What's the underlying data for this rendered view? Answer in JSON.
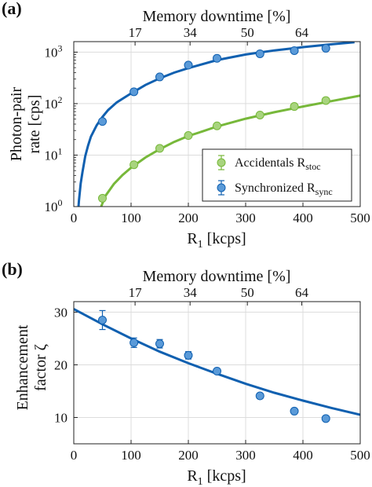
{
  "chart_data": [
    {
      "type": "scatter",
      "panel_label": "(a)",
      "xlabel": "R",
      "xlabel_sub": "1",
      "xlabel_unit": " [kcps]",
      "ylabel_line1": "Photon-pair",
      "ylabel_line2": "rate [cps]",
      "top_xlabel": "Memory downtime [%]",
      "yscale": "log",
      "xlim": [
        0,
        500
      ],
      "ylim": [
        1,
        1600
      ],
      "x_ticks": [
        0,
        100,
        200,
        300,
        400,
        500
      ],
      "x_tick_labels": [
        "0",
        "100",
        "200",
        "300",
        "400",
        "500"
      ],
      "y_ticks": [
        1,
        10,
        100,
        1000
      ],
      "y_tick_labels": [
        {
          "base": "10",
          "exp": "0"
        },
        {
          "base": "10",
          "exp": "1"
        },
        {
          "base": "10",
          "exp": "2"
        },
        {
          "base": "10",
          "exp": "3"
        }
      ],
      "top_ticks": [
        {
          "x": 107,
          "label": "17"
        },
        {
          "x": 203,
          "label": "34"
        },
        {
          "x": 303,
          "label": "50"
        },
        {
          "x": 398,
          "label": "64"
        }
      ],
      "grid": true,
      "legend_position": "bottom-right",
      "series": [
        {
          "name": "Accidentals R",
          "name_sub": "stoc",
          "color": "#77b83a",
          "marker_fill": "#a8d47e",
          "x": [
            50,
            105,
            150,
            200,
            250,
            325,
            385,
            440
          ],
          "y": [
            1.45,
            6.5,
            13.5,
            24,
            37,
            60,
            88,
            115
          ],
          "fit_x": [
            40,
            55,
            70,
            85,
            100,
            125,
            150,
            175,
            200,
            225,
            250,
            300,
            350,
            400,
            450,
            500
          ],
          "fit_y": [
            0.6,
            1.6,
            2.75,
            4.1,
            5.7,
            9.0,
            13.0,
            18.0,
            23.5,
            29.0,
            36.0,
            51.0,
            68.0,
            88.0,
            112.0,
            143.0
          ]
        },
        {
          "name": "Synchronized R",
          "name_sub": "sync",
          "color": "#1060b0",
          "marker_fill": "#5a9ad8",
          "x": [
            50,
            105,
            150,
            200,
            250,
            325,
            385,
            440
          ],
          "y": [
            45,
            170,
            330,
            560,
            760,
            930,
            1070,
            1190
          ],
          "fit_x": [
            7,
            9,
            12,
            15,
            20,
            25,
            30,
            40,
            50,
            60,
            75,
            100,
            125,
            150,
            175,
            200,
            250,
            300,
            350,
            400,
            450,
            490
          ],
          "fit_y": [
            0.65,
            1.3,
            2.8,
            4.6,
            9.5,
            15.5,
            23,
            38,
            55,
            75,
            106,
            158,
            230,
            310,
            400,
            490,
            700,
            900,
            1080,
            1250,
            1420,
            1560
          ]
        }
      ]
    },
    {
      "type": "scatter",
      "panel_label": "(b)",
      "xlabel": "R",
      "xlabel_sub": "1",
      "xlabel_unit": " [kcps]",
      "ylabel_line1": "Enhancement",
      "ylabel_line2": "factor ζ",
      "top_xlabel": "Memory downtime [%]",
      "xlim": [
        0,
        500
      ],
      "ylim": [
        5,
        32
      ],
      "x_ticks": [
        0,
        100,
        200,
        300,
        400,
        500
      ],
      "x_tick_labels": [
        "0",
        "100",
        "200",
        "300",
        "400",
        "500"
      ],
      "y_ticks": [
        10,
        20,
        30
      ],
      "y_tick_labels": [
        "10",
        "20",
        "30"
      ],
      "top_ticks": [
        {
          "x": 107,
          "label": "17"
        },
        {
          "x": 203,
          "label": "34"
        },
        {
          "x": 303,
          "label": "50"
        },
        {
          "x": 398,
          "label": "64"
        }
      ],
      "grid": true,
      "series": [
        {
          "color": "#1060b0",
          "marker_fill": "#5a9ad8",
          "x": [
            50,
            105,
            150,
            200,
            250,
            325,
            385,
            440
          ],
          "y": [
            28.5,
            24.2,
            24.0,
            21.8,
            18.8,
            14.1,
            11.2,
            9.8
          ],
          "yerr": [
            1.8,
            0.9,
            0.8,
            0.7,
            0.5,
            0.5,
            0.4,
            0.4
          ],
          "fit_x": [
            0,
            50,
            100,
            150,
            200,
            250,
            300,
            350,
            400,
            450,
            500
          ],
          "fit_y": [
            30.6,
            27.7,
            25.0,
            22.5,
            20.3,
            18.3,
            16.4,
            14.7,
            13.2,
            11.8,
            10.5
          ]
        }
      ]
    }
  ]
}
